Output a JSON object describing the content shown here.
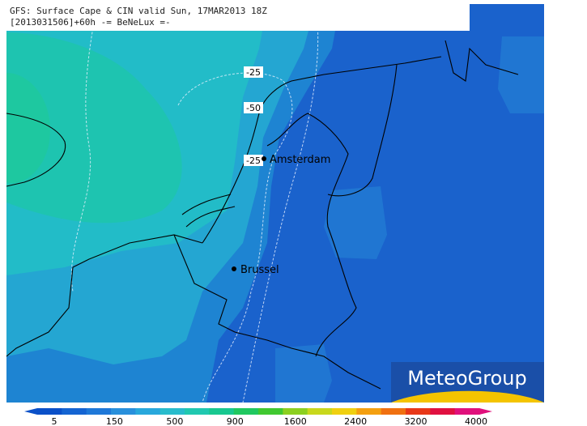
{
  "header": {
    "line1": "GFS: Surface Cape & CIN valid Sun, 17MAR2013 18Z",
    "line2": "[2013031506]+60h -= BeNeLux =-"
  },
  "contour_labels": [
    "-25",
    "-50",
    "-25"
  ],
  "cities": [
    "Amsterdam",
    "Brussel"
  ],
  "logo": "MeteoGroup",
  "colorbar": {
    "ticks": [
      5,
      150,
      500,
      900,
      1600,
      2400,
      3200,
      4000
    ],
    "colors": [
      "#0a50c8",
      "#1464d2",
      "#1e78d8",
      "#2890dc",
      "#28a8dc",
      "#28bccc",
      "#20c8b0",
      "#18c890",
      "#20c860",
      "#40c830",
      "#8cd020",
      "#c8d81c",
      "#f0d010",
      "#f4a010",
      "#f07010",
      "#e83818",
      "#e01040",
      "#e0107c"
    ]
  }
}
